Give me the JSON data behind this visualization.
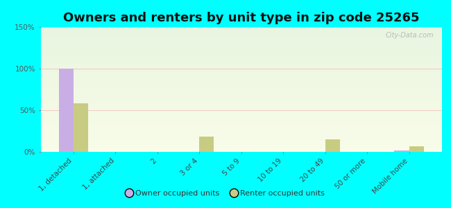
{
  "title": "Owners and renters by unit type in zip code 25265",
  "categories": [
    "1, detached",
    "1, attached",
    "2",
    "3 or 4",
    "5 to 9",
    "10 to 19",
    "20 to 49",
    "50 or more",
    "Mobile home"
  ],
  "owner_values": [
    100,
    0,
    0,
    0,
    0,
    0,
    0,
    0,
    2
  ],
  "renter_values": [
    58,
    0,
    0,
    18,
    0,
    0,
    15,
    0,
    7
  ],
  "owner_color": "#c9aee5",
  "renter_color": "#c8cc82",
  "background_outer": "#00ffff",
  "grad_top": "#e8f5e0",
  "grad_bottom": "#f8fce8",
  "ylabel_ticks": [
    "0%",
    "50%",
    "100%",
    "150%"
  ],
  "ytick_vals": [
    0,
    50,
    100,
    150
  ],
  "ylim": [
    0,
    150
  ],
  "bar_width": 0.35,
  "legend_owner": "Owner occupied units",
  "legend_renter": "Renter occupied units",
  "watermark": "City-Data.com",
  "title_fontsize": 13,
  "tick_fontsize": 7.5
}
